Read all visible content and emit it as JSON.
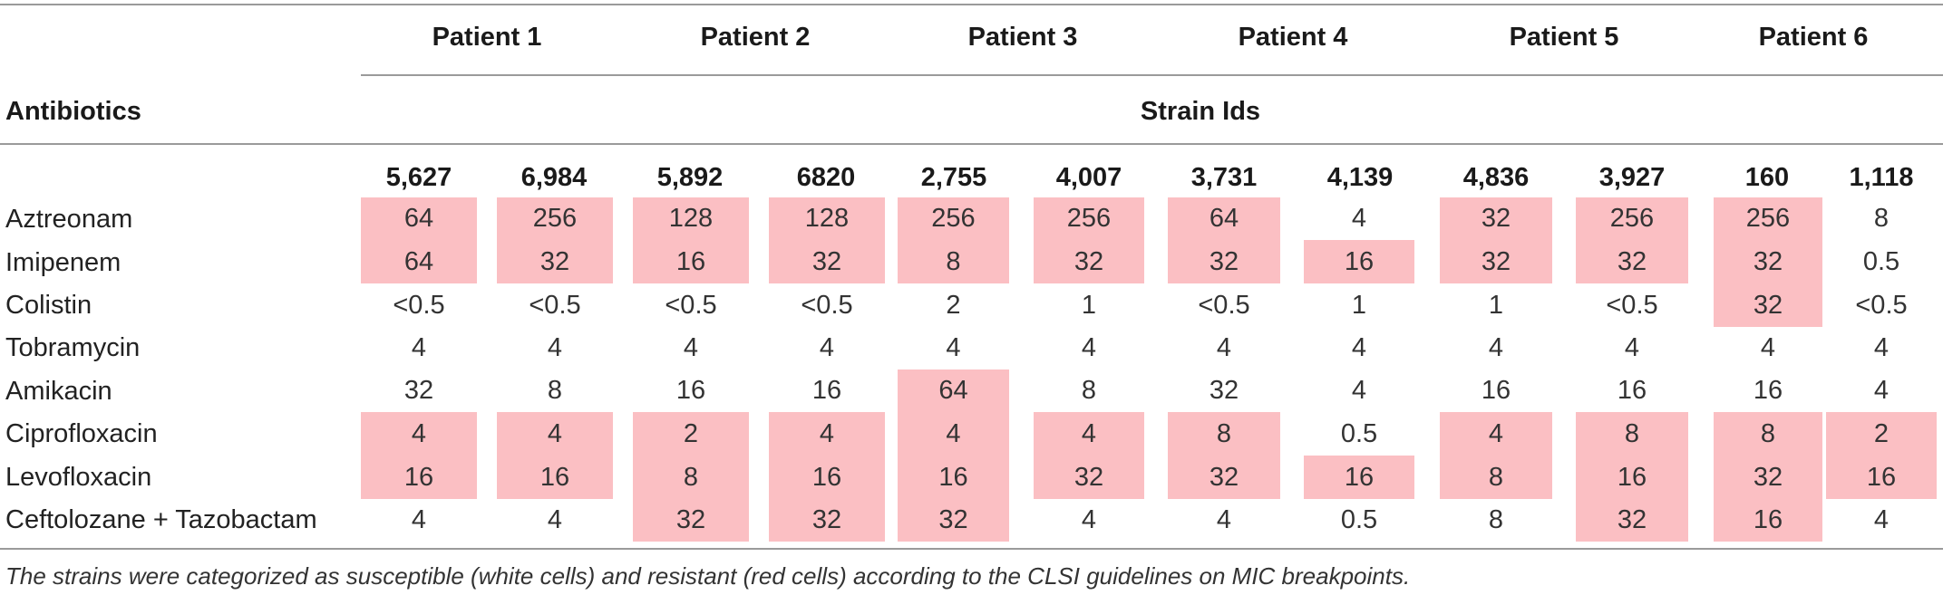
{
  "header": {
    "antibiotics_label": "Antibiotics",
    "strain_ids_label": "Strain Ids",
    "patients": [
      "Patient 1",
      "Patient 2",
      "Patient 3",
      "Patient 4",
      "Patient 5",
      "Patient 6"
    ],
    "strain_ids": [
      "5,627",
      "6,984",
      "5,892",
      "6820",
      "2,755",
      "4,007",
      "3,731",
      "4,139",
      "4,836",
      "3,927",
      "160",
      "1,118"
    ]
  },
  "rows": [
    {
      "name": "Aztreonam",
      "values": [
        "64",
        "256",
        "128",
        "128",
        "256",
        "256",
        "64",
        "4",
        "32",
        "256",
        "256",
        "8"
      ],
      "resistant": [
        true,
        true,
        true,
        true,
        true,
        true,
        true,
        false,
        true,
        true,
        true,
        false
      ]
    },
    {
      "name": "Imipenem",
      "values": [
        "64",
        "32",
        "16",
        "32",
        "8",
        "32",
        "32",
        "16",
        "32",
        "32",
        "32",
        "0.5"
      ],
      "resistant": [
        true,
        true,
        true,
        true,
        true,
        true,
        true,
        true,
        true,
        true,
        true,
        false
      ]
    },
    {
      "name": "Colistin",
      "values": [
        "<0.5",
        "<0.5",
        "<0.5",
        "<0.5",
        "2",
        "1",
        "<0.5",
        "1",
        "1",
        "<0.5",
        "32",
        "<0.5"
      ],
      "resistant": [
        false,
        false,
        false,
        false,
        false,
        false,
        false,
        false,
        false,
        false,
        true,
        false
      ]
    },
    {
      "name": "Tobramycin",
      "values": [
        "4",
        "4",
        "4",
        "4",
        "4",
        "4",
        "4",
        "4",
        "4",
        "4",
        "4",
        "4"
      ],
      "resistant": [
        false,
        false,
        false,
        false,
        false,
        false,
        false,
        false,
        false,
        false,
        false,
        false
      ]
    },
    {
      "name": "Amikacin",
      "values": [
        "32",
        "8",
        "16",
        "16",
        "64",
        "8",
        "32",
        "4",
        "16",
        "16",
        "16",
        "4"
      ],
      "resistant": [
        false,
        false,
        false,
        false,
        true,
        false,
        false,
        false,
        false,
        false,
        false,
        false
      ]
    },
    {
      "name": "Ciprofloxacin",
      "values": [
        "4",
        "4",
        "2",
        "4",
        "4",
        "4",
        "8",
        "0.5",
        "4",
        "8",
        "8",
        "2"
      ],
      "resistant": [
        true,
        true,
        true,
        true,
        true,
        true,
        true,
        false,
        true,
        true,
        true,
        true
      ]
    },
    {
      "name": "Levofloxacin",
      "values": [
        "16",
        "16",
        "8",
        "16",
        "16",
        "32",
        "32",
        "16",
        "8",
        "16",
        "32",
        "16"
      ],
      "resistant": [
        true,
        true,
        true,
        true,
        true,
        true,
        true,
        true,
        true,
        true,
        true,
        true
      ]
    },
    {
      "name": "Ceftolozane + Tazobactam",
      "values": [
        "4",
        "4",
        "32",
        "32",
        "32",
        "4",
        "4",
        "0.5",
        "8",
        "32",
        "16",
        "4"
      ],
      "resistant": [
        false,
        false,
        true,
        true,
        true,
        false,
        false,
        false,
        false,
        true,
        true,
        false
      ]
    }
  ],
  "footnote": "The strains were categorized as susceptible (white cells) and resistant (red cells) according to the CLSI guidelines on MIC breakpoints.",
  "colors": {
    "resistant": "#fbbfc3",
    "susceptible": "#ffffff",
    "rule": "#9a9a9a"
  }
}
